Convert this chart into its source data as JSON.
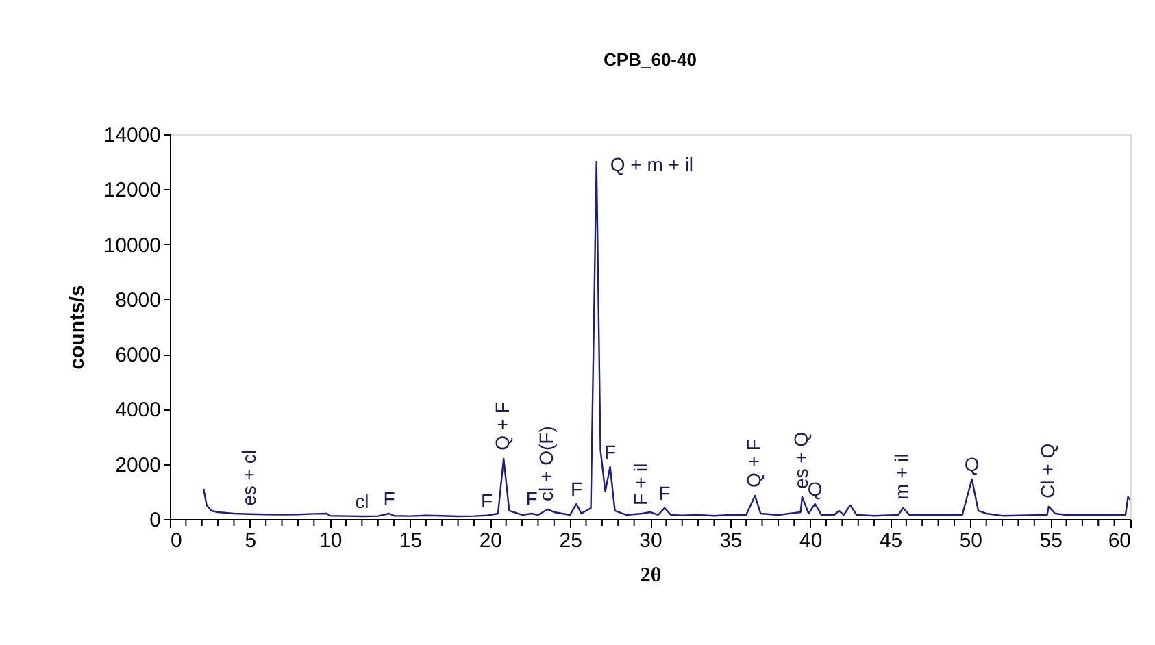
{
  "chart_data": {
    "type": "line",
    "title": "CPB_60-40",
    "xlabel": "2θ",
    "ylabel": "counts/s",
    "xlim": [
      0,
      60
    ],
    "ylim": [
      0,
      14000
    ],
    "xticks": [
      0,
      {
        "value": 1,
        "label": null
      },
      {
        "value": 2,
        "label": null
      },
      {
        "value": 3,
        "label": null
      },
      {
        "value": 4,
        "label": null
      },
      5,
      {
        "value": 6,
        "label": null
      },
      {
        "value": 7,
        "label": null
      },
      {
        "value": 8,
        "label": null
      },
      {
        "value": 9,
        "label": null
      },
      10,
      {
        "value": 11,
        "label": null
      },
      {
        "value": 12,
        "label": null
      },
      {
        "value": 13,
        "label": null
      },
      {
        "value": 14,
        "label": null
      },
      15,
      {
        "value": 16,
        "label": null
      },
      {
        "value": 17,
        "label": null
      },
      {
        "value": 18,
        "label": null
      },
      {
        "value": 19,
        "label": null
      },
      20,
      {
        "value": 21,
        "label": null
      },
      {
        "value": 22,
        "label": null
      },
      {
        "value": 23,
        "label": null
      },
      {
        "value": 24,
        "label": null
      },
      25,
      {
        "value": 26,
        "label": null
      },
      {
        "value": 27,
        "label": null
      },
      {
        "value": 28,
        "label": null
      },
      {
        "value": 29,
        "label": null
      },
      30,
      {
        "value": 31,
        "label": null
      },
      {
        "value": 32,
        "label": null
      },
      {
        "value": 33,
        "label": null
      },
      {
        "value": 34,
        "label": null
      },
      35,
      {
        "value": 36,
        "label": null
      },
      {
        "value": 37,
        "label": null
      },
      {
        "value": 38,
        "label": null
      },
      {
        "value": 39,
        "label": null
      },
      40,
      {
        "value": 41,
        "label": null
      },
      {
        "value": 42,
        "label": null
      },
      {
        "value": 43,
        "label": null
      },
      {
        "value": 44,
        "label": null
      },
      45,
      {
        "value": 46,
        "label": null
      },
      {
        "value": 47,
        "label": null
      },
      {
        "value": 48,
        "label": null
      },
      {
        "value": 49,
        "label": null
      },
      50,
      {
        "value": 51,
        "label": null
      },
      {
        "value": 52,
        "label": null
      },
      {
        "value": 53,
        "label": null
      },
      {
        "value": 54,
        "label": null
      },
      55,
      {
        "value": 56,
        "label": null
      },
      {
        "value": 57,
        "label": null
      },
      {
        "value": 58,
        "label": null
      },
      {
        "value": 59,
        "label": null
      },
      60
    ],
    "yticks": [
      0,
      2000,
      4000,
      6000,
      8000,
      10000,
      12000,
      14000
    ],
    "grid": false,
    "marker": "none",
    "line_style": "solid",
    "x": [
      2.1,
      2.3,
      2.6,
      3.0,
      4,
      5,
      6,
      7,
      8,
      9,
      9.8,
      10,
      11,
      12,
      13,
      13.7,
      14,
      15,
      16,
      17,
      18,
      19,
      19.8,
      20.5,
      20.85,
      21.2,
      22,
      22.6,
      23,
      23.6,
      24,
      25,
      25.4,
      25.7,
      26.3,
      26.65,
      26.9,
      27.2,
      27.5,
      27.8,
      28.5,
      29.5,
      30,
      30.5,
      30.9,
      31.3,
      32,
      33,
      34,
      35,
      36,
      36.55,
      36.9,
      38,
      39.4,
      39.5,
      39.9,
      40.3,
      40.7,
      41.5,
      41.8,
      42.1,
      42.5,
      42.9,
      44,
      45.5,
      45.8,
      46.2,
      48,
      49.5,
      50.1,
      50.5,
      51,
      52,
      54.8,
      54.9,
      55.3,
      56,
      58,
      59.7,
      59.85,
      60
    ],
    "series": [
      {
        "color": "#1c1c8c",
        "values": [
          1100,
          500,
          300,
          250,
          200,
          180,
          170,
          160,
          170,
          190,
          200,
          120,
          110,
          100,
          110,
          200,
          120,
          110,
          130,
          120,
          100,
          110,
          130,
          200,
          2200,
          300,
          150,
          200,
          150,
          350,
          250,
          150,
          550,
          200,
          400,
          13000,
          2500,
          1000,
          1900,
          300,
          150,
          200,
          250,
          150,
          400,
          150,
          130,
          150,
          120,
          150,
          150,
          850,
          200,
          150,
          250,
          800,
          200,
          550,
          150,
          150,
          300,
          150,
          500,
          150,
          120,
          150,
          400,
          150,
          150,
          150,
          1450,
          300,
          200,
          120,
          150,
          450,
          200,
          150,
          150,
          150,
          800,
          700
        ]
      }
    ],
    "annotations": [
      {
        "text": "es + cl",
        "x": 5,
        "y": 180
      },
      {
        "text": "cl",
        "x": 12,
        "y": 100
      },
      {
        "text": "F",
        "x": 13.7,
        "y": 200
      },
      {
        "text": "F",
        "x": 19.8,
        "y": 130
      },
      {
        "text": "Q + F",
        "x": 20.85,
        "y": 2200
      },
      {
        "text": "F",
        "x": 22.6,
        "y": 200
      },
      {
        "text": "cl + O(F)",
        "x": 23.6,
        "y": 350
      },
      {
        "text": "F",
        "x": 25.4,
        "y": 550
      },
      {
        "text": "Q + m + il",
        "x": 26.65,
        "y": 13000
      },
      {
        "text": "F",
        "x": 27.5,
        "y": 1900
      },
      {
        "text": "F + il",
        "x": 29.5,
        "y": 200
      },
      {
        "text": "F",
        "x": 30.9,
        "y": 400
      },
      {
        "text": "Q + F",
        "x": 36.55,
        "y": 850
      },
      {
        "text": "es + Q",
        "x": 39.5,
        "y": 800
      },
      {
        "text": "Q",
        "x": 40.3,
        "y": 550
      },
      {
        "text": "m + il",
        "x": 45.8,
        "y": 400
      },
      {
        "text": "Q",
        "x": 50.1,
        "y": 1450
      },
      {
        "text": "Cl + Q",
        "x": 54.9,
        "y": 450
      }
    ]
  }
}
